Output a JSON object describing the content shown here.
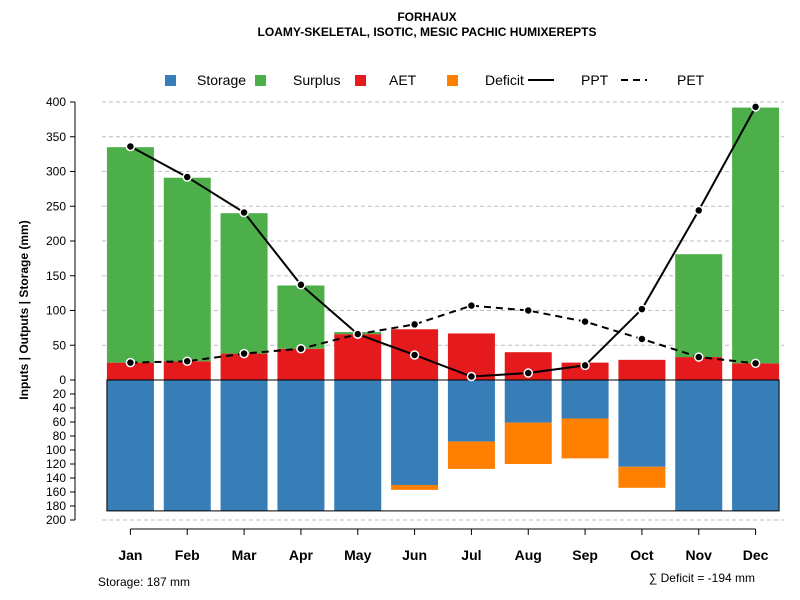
{
  "chart_data": {
    "type": "bar",
    "title": "FORHAUX",
    "subtitle": "LOAMY-SKELETAL, ISOTIC, MESIC PACHIC HUMIXEREPTS",
    "ylabel": "Inputs | Outputs | Storage    (mm)",
    "categories": [
      "Jan",
      "Feb",
      "Mar",
      "Apr",
      "May",
      "Jun",
      "Jul",
      "Aug",
      "Sep",
      "Oct",
      "Nov",
      "Dec"
    ],
    "upper_ylim": [
      0,
      400
    ],
    "upper_ticks": [
      "0",
      "50",
      "100",
      "150",
      "200",
      "250",
      "300",
      "350",
      "400"
    ],
    "lower_ylim": [
      0,
      200
    ],
    "lower_ticks": [
      "20",
      "40",
      "60",
      "80",
      "100",
      "120",
      "140",
      "160",
      "180",
      "200"
    ],
    "grid": true,
    "legend": [
      {
        "label": "Storage",
        "kind": "box",
        "color": "#377EB8"
      },
      {
        "label": "Surplus",
        "kind": "box",
        "color": "#4DAF4A"
      },
      {
        "label": "AET",
        "kind": "box",
        "color": "#E41A1C"
      },
      {
        "label": "Deficit",
        "kind": "box",
        "color": "#FF7F00"
      },
      {
        "label": "PPT",
        "kind": "solid"
      },
      {
        "label": "PET",
        "kind": "dashed"
      }
    ],
    "series": [
      {
        "name": "AET",
        "color": "#E41A1C",
        "values": [
          25,
          27,
          38,
          45,
          66,
          73,
          67,
          40,
          25,
          29,
          33,
          24
        ]
      },
      {
        "name": "Surplus",
        "color": "#4DAF4A",
        "values": [
          310,
          264,
          202,
          91,
          3,
          0,
          0,
          0,
          0,
          0,
          148,
          368
        ]
      },
      {
        "name": "Storage",
        "color": "#377EB8",
        "values": [
          187,
          187,
          187,
          187,
          187,
          150,
          88,
          61,
          55,
          124,
          187,
          187
        ]
      },
      {
        "name": "Deficit",
        "color": "#FF7F00",
        "values": [
          0,
          0,
          0,
          0,
          0,
          7,
          39,
          59,
          57,
          30,
          0,
          0
        ]
      },
      {
        "name": "PPT",
        "values": [
          336,
          292,
          241,
          137,
          66,
          36,
          5,
          10,
          21,
          102,
          244,
          393
        ]
      },
      {
        "name": "PET",
        "values": [
          25,
          27,
          38,
          45,
          66,
          80,
          107,
          100,
          84,
          59,
          33,
          24
        ]
      }
    ],
    "storage_capacity": 187,
    "footer_left": "Storage: 187 mm",
    "footer_right": "∑ Deficit = -194 mm"
  }
}
